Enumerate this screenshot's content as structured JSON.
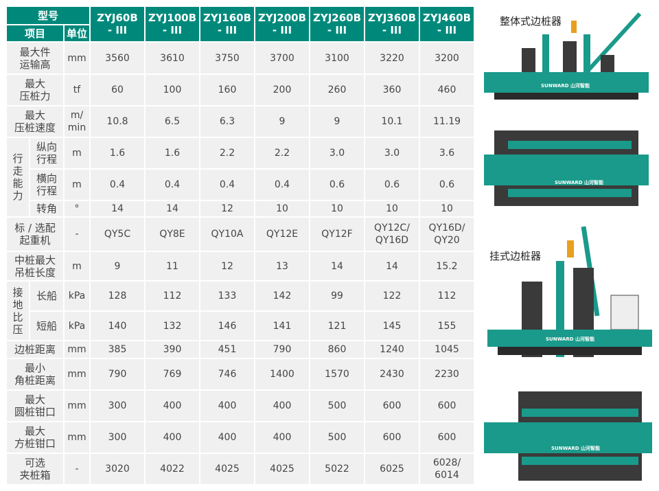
{
  "header": {
    "model_label": "型号",
    "item_label": "项目",
    "unit_label": "单位",
    "models": [
      "ZYJ60B\n- III",
      "ZYJ100B\n- III",
      "ZYJ160B\n- III",
      "ZYJ200B\n- III",
      "ZYJ260B\n- III",
      "ZYJ360B\n- III",
      "ZYJ460B\n- III"
    ]
  },
  "rows": [
    {
      "label": "最大件\n运输高",
      "unit": "mm",
      "values": [
        "3560",
        "3610",
        "3750",
        "3700",
        "3100",
        "3220",
        "3200"
      ]
    },
    {
      "label": "最大\n压桩力",
      "unit": "tf",
      "values": [
        "60",
        "100",
        "160",
        "200",
        "260",
        "360",
        "460"
      ]
    },
    {
      "label": "最大\n压桩速度",
      "unit": "m/\nmin",
      "values": [
        "10.8",
        "6.5",
        "6.3",
        "9",
        "9",
        "10.1",
        "11.19"
      ]
    },
    {
      "group": "行\n走\n能\n力",
      "label": "纵向\n行程",
      "unit": "m",
      "values": [
        "1.6",
        "1.6",
        "2.2",
        "2.2",
        "3.0",
        "3.0",
        "3.6"
      ]
    },
    {
      "label": "横向\n行程",
      "unit": "m",
      "values": [
        "0.4",
        "0.4",
        "0.4",
        "0.4",
        "0.6",
        "0.6",
        "0.6"
      ]
    },
    {
      "label": "转角",
      "unit": "°",
      "values": [
        "14",
        "14",
        "12",
        "10",
        "10",
        "10",
        "10"
      ]
    },
    {
      "label": "标 / 选配\n起重机",
      "unit": "-",
      "values": [
        "QY5C",
        "QY8E",
        "QY10A",
        "QY12E",
        "QY12F",
        "QY12C/\nQY16D",
        "QY16D/\nQY20"
      ]
    },
    {
      "label": "中桩最大\n吊桩长度",
      "unit": "m",
      "values": [
        "9",
        "11",
        "12",
        "13",
        "14",
        "14",
        "15.2"
      ]
    },
    {
      "group": "接\n地\n比\n压",
      "label": "长船",
      "unit": "kPa",
      "values": [
        "128",
        "112",
        "133",
        "142",
        "99",
        "122",
        "112"
      ]
    },
    {
      "label": "短船",
      "unit": "kPa",
      "values": [
        "140",
        "132",
        "146",
        "141",
        "121",
        "145",
        "155"
      ]
    },
    {
      "label": "边桩距离",
      "unit": "mm",
      "values": [
        "385",
        "390",
        "451",
        "790",
        "860",
        "1240",
        "1045"
      ]
    },
    {
      "label": "最小\n角桩距离",
      "unit": "mm",
      "values": [
        "790",
        "769",
        "746",
        "1400",
        "1570",
        "2430",
        "2230"
      ]
    },
    {
      "label": "最大\n圆桩钳口",
      "unit": "mm",
      "values": [
        "300",
        "400",
        "400",
        "400",
        "500",
        "600",
        "600"
      ]
    },
    {
      "label": "最大\n方桩钳口",
      "unit": "mm",
      "values": [
        "300",
        "400",
        "400",
        "400",
        "500",
        "600",
        "600"
      ]
    },
    {
      "label": "可选\n夹桩箱",
      "unit": "-",
      "values": [
        "3020",
        "4022",
        "4025",
        "4025",
        "5022",
        "6025",
        "6028/\n6014"
      ]
    }
  ],
  "figures": {
    "integral_caption": "整体式边桩器",
    "hanging_caption": "挂式边桩器",
    "brand": "SUNWARD 山河智能"
  },
  "colors": {
    "header": "#00897b",
    "machine": "#1a9a8a",
    "weights": "#3a3a3a"
  }
}
